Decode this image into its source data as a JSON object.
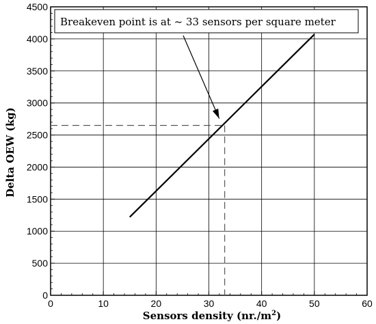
{
  "chart_data": {
    "type": "line",
    "xlabel": "Sensors density (nr./m",
    "xlabel_sup": "2",
    "xlabel_suffix": ")",
    "ylabel": "Delta OEW (kg)",
    "xlim": [
      0,
      60
    ],
    "ylim": [
      0,
      4500
    ],
    "xticks": [
      0,
      10,
      20,
      30,
      40,
      50,
      60
    ],
    "yticks": [
      0,
      500,
      1000,
      1500,
      2000,
      2500,
      3000,
      3500,
      4000,
      4500
    ],
    "grid": true,
    "series": [
      {
        "x": [
          15,
          50
        ],
        "y": [
          1220,
          4070
        ]
      }
    ],
    "breakeven": {
      "x": 33,
      "y": 2650
    },
    "annotation": "Breakeven point is at ~ 33 sensors per square meter"
  }
}
